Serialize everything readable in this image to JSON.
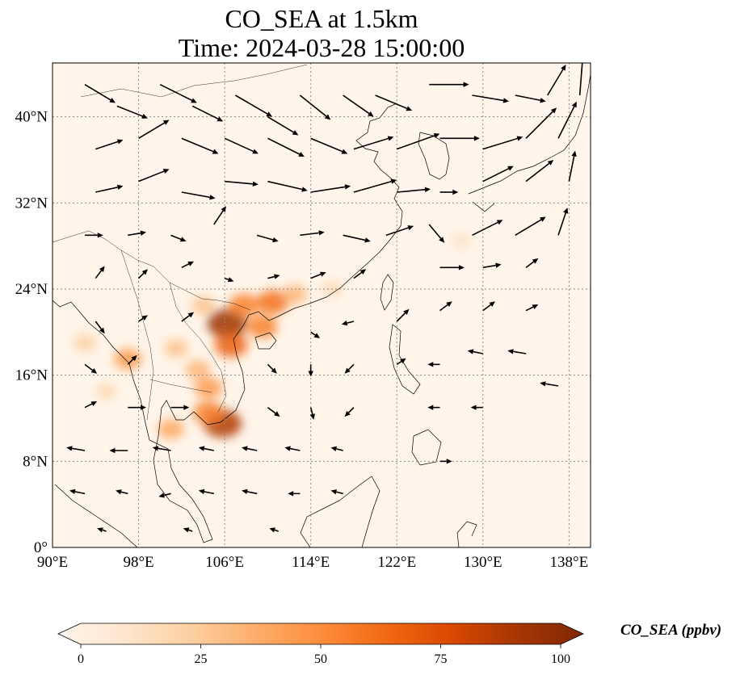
{
  "title": {
    "line1": "CO_SEA at 1.5km",
    "line2": "Time: 2024-03-28 15:00:00"
  },
  "map": {
    "extent": {
      "lon": [
        90,
        140
      ],
      "lat": [
        0,
        45
      ]
    },
    "gridlines": "dotted",
    "background_color": "#fff5ea",
    "coastline_color": "#000000",
    "x_ticks": [
      {
        "value": 90,
        "label": "90°E"
      },
      {
        "value": 98,
        "label": "98°E"
      },
      {
        "value": 106,
        "label": "106°E"
      },
      {
        "value": 114,
        "label": "114°E"
      },
      {
        "value": 122,
        "label": "122°E"
      },
      {
        "value": 130,
        "label": "130°E"
      },
      {
        "value": 138,
        "label": "138°E"
      }
    ],
    "y_ticks": [
      {
        "value": 0,
        "label": "0°"
      },
      {
        "value": 8,
        "label": "8°N"
      },
      {
        "value": 16,
        "label": "16°N"
      },
      {
        "value": 24,
        "label": "24°N"
      },
      {
        "value": 32,
        "label": "32°N"
      },
      {
        "value": 40,
        "label": "40°N"
      }
    ],
    "co_hotspots": [
      {
        "lon": 106.2,
        "lat": 20.8,
        "value": 90
      },
      {
        "lon": 106.6,
        "lat": 18.8,
        "value": 65
      },
      {
        "lon": 107.8,
        "lat": 22.5,
        "value": 55
      },
      {
        "lon": 110.5,
        "lat": 22.8,
        "value": 60
      },
      {
        "lon": 109.5,
        "lat": 20.5,
        "value": 55
      },
      {
        "lon": 105.8,
        "lat": 11.5,
        "value": 85
      },
      {
        "lon": 104.5,
        "lat": 12.5,
        "value": 55
      },
      {
        "lon": 101.0,
        "lat": 11.0,
        "value": 40
      },
      {
        "lon": 104.5,
        "lat": 14.8,
        "value": 45
      },
      {
        "lon": 103.5,
        "lat": 16.5,
        "value": 35
      },
      {
        "lon": 101.5,
        "lat": 18.5,
        "value": 30
      },
      {
        "lon": 97.0,
        "lat": 17.5,
        "value": 45
      },
      {
        "lon": 93.0,
        "lat": 19.0,
        "value": 25
      },
      {
        "lon": 95.0,
        "lat": 14.5,
        "value": 20
      },
      {
        "lon": 104.0,
        "lat": 22.5,
        "value": 30
      },
      {
        "lon": 112.5,
        "lat": 23.5,
        "value": 35
      },
      {
        "lon": 116.0,
        "lat": 24.0,
        "value": 20
      },
      {
        "lon": 128.0,
        "lat": 28.5,
        "value": 15
      }
    ],
    "wind_vectors": [
      {
        "lon": 93,
        "lat": 43,
        "u": 1.0,
        "v": -0.6
      },
      {
        "lon": 96,
        "lat": 41,
        "u": 1.0,
        "v": -0.4
      },
      {
        "lon": 100,
        "lat": 43,
        "u": 1.2,
        "v": -0.6
      },
      {
        "lon": 103,
        "lat": 41,
        "u": 1.0,
        "v": -0.5
      },
      {
        "lon": 107,
        "lat": 42,
        "u": 1.2,
        "v": -0.7
      },
      {
        "lon": 110,
        "lat": 40,
        "u": 1.0,
        "v": -0.6
      },
      {
        "lon": 113,
        "lat": 42,
        "u": 1.0,
        "v": -0.8
      },
      {
        "lon": 117,
        "lat": 42,
        "u": 1.0,
        "v": -0.7
      },
      {
        "lon": 120,
        "lat": 42,
        "u": 1.2,
        "v": -0.5
      },
      {
        "lon": 125,
        "lat": 43,
        "u": 1.3,
        "v": 0.0
      },
      {
        "lon": 129,
        "lat": 42,
        "u": 1.2,
        "v": -0.2
      },
      {
        "lon": 133,
        "lat": 42,
        "u": 1.0,
        "v": -0.2
      },
      {
        "lon": 136,
        "lat": 42,
        "u": 0.6,
        "v": 1.0
      },
      {
        "lon": 139,
        "lat": 42,
        "u": 0.1,
        "v": 1.3
      },
      {
        "lon": 94,
        "lat": 37,
        "u": 0.9,
        "v": 0.3
      },
      {
        "lon": 98,
        "lat": 38,
        "u": 1.0,
        "v": 0.6
      },
      {
        "lon": 102,
        "lat": 38,
        "u": 1.2,
        "v": -0.5
      },
      {
        "lon": 106,
        "lat": 38,
        "u": 1.1,
        "v": -0.5
      },
      {
        "lon": 110,
        "lat": 38,
        "u": 1.2,
        "v": -0.6
      },
      {
        "lon": 114,
        "lat": 38,
        "u": 1.2,
        "v": -0.5
      },
      {
        "lon": 118,
        "lat": 37,
        "u": 1.3,
        "v": 0.4
      },
      {
        "lon": 122,
        "lat": 37,
        "u": 1.4,
        "v": 0.5
      },
      {
        "lon": 126,
        "lat": 38,
        "u": 1.3,
        "v": 0.0
      },
      {
        "lon": 130,
        "lat": 37,
        "u": 1.3,
        "v": 0.4
      },
      {
        "lon": 134,
        "lat": 38,
        "u": 1.0,
        "v": 1.0
      },
      {
        "lon": 137,
        "lat": 38,
        "u": 0.6,
        "v": 1.2
      },
      {
        "lon": 94,
        "lat": 33,
        "u": 0.9,
        "v": 0.2
      },
      {
        "lon": 98,
        "lat": 34,
        "u": 1.0,
        "v": 0.4
      },
      {
        "lon": 102,
        "lat": 33,
        "u": 1.1,
        "v": -0.2
      },
      {
        "lon": 106,
        "lat": 34,
        "u": 1.1,
        "v": -0.1
      },
      {
        "lon": 110,
        "lat": 34,
        "u": 1.3,
        "v": -0.3
      },
      {
        "lon": 114,
        "lat": 33,
        "u": 1.3,
        "v": 0.2
      },
      {
        "lon": 118,
        "lat": 33,
        "u": 1.4,
        "v": 0.4
      },
      {
        "lon": 122,
        "lat": 33,
        "u": 1.1,
        "v": 0.1
      },
      {
        "lon": 126,
        "lat": 33,
        "u": 0.6,
        "v": 0.0
      },
      {
        "lon": 130,
        "lat": 34,
        "u": 1.0,
        "v": 0.5
      },
      {
        "lon": 134,
        "lat": 34,
        "u": 0.9,
        "v": 0.7
      },
      {
        "lon": 138,
        "lat": 34,
        "u": 0.2,
        "v": 1.0
      },
      {
        "lon": 93,
        "lat": 29,
        "u": 0.6,
        "v": 0.0
      },
      {
        "lon": 97,
        "lat": 29,
        "u": 0.6,
        "v": 0.1
      },
      {
        "lon": 101,
        "lat": 29,
        "u": 0.5,
        "v": -0.2
      },
      {
        "lon": 105,
        "lat": 30,
        "u": 0.4,
        "v": 0.6
      },
      {
        "lon": 109,
        "lat": 29,
        "u": 0.7,
        "v": -0.2
      },
      {
        "lon": 113,
        "lat": 29,
        "u": 0.8,
        "v": 0.1
      },
      {
        "lon": 117,
        "lat": 29,
        "u": 0.9,
        "v": -0.2
      },
      {
        "lon": 121,
        "lat": 29,
        "u": 0.9,
        "v": 0.3
      },
      {
        "lon": 125,
        "lat": 30,
        "u": 0.5,
        "v": -0.6
      },
      {
        "lon": 129,
        "lat": 29,
        "u": 1.0,
        "v": 0.5
      },
      {
        "lon": 133,
        "lat": 29,
        "u": 1.0,
        "v": 0.6
      },
      {
        "lon": 137,
        "lat": 29,
        "u": 0.3,
        "v": 0.9
      },
      {
        "lon": 94,
        "lat": 25,
        "u": 0.3,
        "v": 0.4
      },
      {
        "lon": 98,
        "lat": 25,
        "u": 0.3,
        "v": 0.3
      },
      {
        "lon": 102,
        "lat": 26,
        "u": 0.4,
        "v": 0.2
      },
      {
        "lon": 106,
        "lat": 25,
        "u": 0.3,
        "v": -0.1
      },
      {
        "lon": 110,
        "lat": 25,
        "u": 0.4,
        "v": 0.1
      },
      {
        "lon": 114,
        "lat": 25,
        "u": 0.5,
        "v": 0.2
      },
      {
        "lon": 118,
        "lat": 25,
        "u": 0.4,
        "v": 0.3
      },
      {
        "lon": 126,
        "lat": 26,
        "u": 0.8,
        "v": 0.0
      },
      {
        "lon": 130,
        "lat": 26,
        "u": 0.6,
        "v": 0.1
      },
      {
        "lon": 134,
        "lat": 26,
        "u": 0.4,
        "v": 0.3
      },
      {
        "lon": 94,
        "lat": 21,
        "u": 0.3,
        "v": -0.4
      },
      {
        "lon": 98,
        "lat": 21,
        "u": 0.3,
        "v": 0.2
      },
      {
        "lon": 102,
        "lat": 21,
        "u": 0.4,
        "v": 0.3
      },
      {
        "lon": 114,
        "lat": 20,
        "u": 0.3,
        "v": -0.2
      },
      {
        "lon": 118,
        "lat": 21,
        "u": -0.4,
        "v": -0.1
      },
      {
        "lon": 122,
        "lat": 21,
        "u": 0.4,
        "v": 0.4
      },
      {
        "lon": 126,
        "lat": 22,
        "u": 0.4,
        "v": 0.3
      },
      {
        "lon": 130,
        "lat": 22,
        "u": 0.4,
        "v": 0.3
      },
      {
        "lon": 134,
        "lat": 22,
        "u": 0.4,
        "v": 0.2
      },
      {
        "lon": 93,
        "lat": 17,
        "u": 0.4,
        "v": -0.3
      },
      {
        "lon": 97,
        "lat": 17,
        "u": 0.3,
        "v": 0.3
      },
      {
        "lon": 110,
        "lat": 17,
        "u": 0.3,
        "v": -0.3
      },
      {
        "lon": 114,
        "lat": 17,
        "u": 0.0,
        "v": -0.4
      },
      {
        "lon": 118,
        "lat": 17,
        "u": -0.3,
        "v": -0.3
      },
      {
        "lon": 122,
        "lat": 17,
        "u": 0.3,
        "v": 0.2
      },
      {
        "lon": 126,
        "lat": 17,
        "u": -0.4,
        "v": 0.0
      },
      {
        "lon": 130,
        "lat": 18,
        "u": -0.5,
        "v": 0.1
      },
      {
        "lon": 134,
        "lat": 18,
        "u": -0.6,
        "v": 0.1
      },
      {
        "lon": 137,
        "lat": 15,
        "u": -0.6,
        "v": 0.1
      },
      {
        "lon": 93,
        "lat": 13,
        "u": 0.4,
        "v": 0.2
      },
      {
        "lon": 97,
        "lat": 13,
        "u": 0.6,
        "v": 0.0
      },
      {
        "lon": 101,
        "lat": 13,
        "u": 0.6,
        "v": 0.0
      },
      {
        "lon": 110,
        "lat": 13,
        "u": 0.4,
        "v": -0.3
      },
      {
        "lon": 114,
        "lat": 13,
        "u": 0.1,
        "v": -0.4
      },
      {
        "lon": 118,
        "lat": 13,
        "u": -0.3,
        "v": -0.3
      },
      {
        "lon": 126,
        "lat": 13,
        "u": -0.4,
        "v": 0.0
      },
      {
        "lon": 130,
        "lat": 13,
        "u": -0.4,
        "v": 0.0
      },
      {
        "lon": 93,
        "lat": 9,
        "u": -0.6,
        "v": 0.1
      },
      {
        "lon": 97,
        "lat": 9,
        "u": -0.6,
        "v": 0.0
      },
      {
        "lon": 101,
        "lat": 9,
        "u": -0.6,
        "v": 0.1
      },
      {
        "lon": 105,
        "lat": 9,
        "u": -0.5,
        "v": 0.1
      },
      {
        "lon": 109,
        "lat": 9,
        "u": -0.5,
        "v": 0.1
      },
      {
        "lon": 113,
        "lat": 9,
        "u": -0.5,
        "v": 0.1
      },
      {
        "lon": 117,
        "lat": 9,
        "u": -0.4,
        "v": 0.1
      },
      {
        "lon": 126,
        "lat": 8,
        "u": 0.4,
        "v": 0.0
      },
      {
        "lon": 93,
        "lat": 5,
        "u": -0.5,
        "v": 0.1
      },
      {
        "lon": 97,
        "lat": 5,
        "u": -0.4,
        "v": 0.1
      },
      {
        "lon": 101,
        "lat": 5,
        "u": -0.4,
        "v": -0.1
      },
      {
        "lon": 105,
        "lat": 5,
        "u": -0.5,
        "v": 0.1
      },
      {
        "lon": 109,
        "lat": 5,
        "u": -0.5,
        "v": 0.1
      },
      {
        "lon": 113,
        "lat": 5,
        "u": -0.4,
        "v": 0.0
      },
      {
        "lon": 117,
        "lat": 5,
        "u": -0.4,
        "v": 0.1
      },
      {
        "lon": 95,
        "lat": 1.5,
        "u": -0.3,
        "v": 0.1
      },
      {
        "lon": 103,
        "lat": 1.5,
        "u": -0.3,
        "v": 0.1
      },
      {
        "lon": 111,
        "lat": 1.5,
        "u": -0.3,
        "v": 0.1
      }
    ]
  },
  "colorbar": {
    "label": "CO_SEA (ppbv)",
    "min": 0,
    "max": 100,
    "extend": "both",
    "ticks": [
      {
        "value": 0,
        "label": "0"
      },
      {
        "value": 25,
        "label": "25"
      },
      {
        "value": 50,
        "label": "50"
      },
      {
        "value": 75,
        "label": "75"
      },
      {
        "value": 100,
        "label": "100"
      }
    ],
    "colormap_stops": [
      "#fff5eb",
      "#fee6ce",
      "#fdd0a2",
      "#fdae6b",
      "#fd8d3c",
      "#f16913",
      "#d94801",
      "#a63603",
      "#7f2704"
    ]
  }
}
